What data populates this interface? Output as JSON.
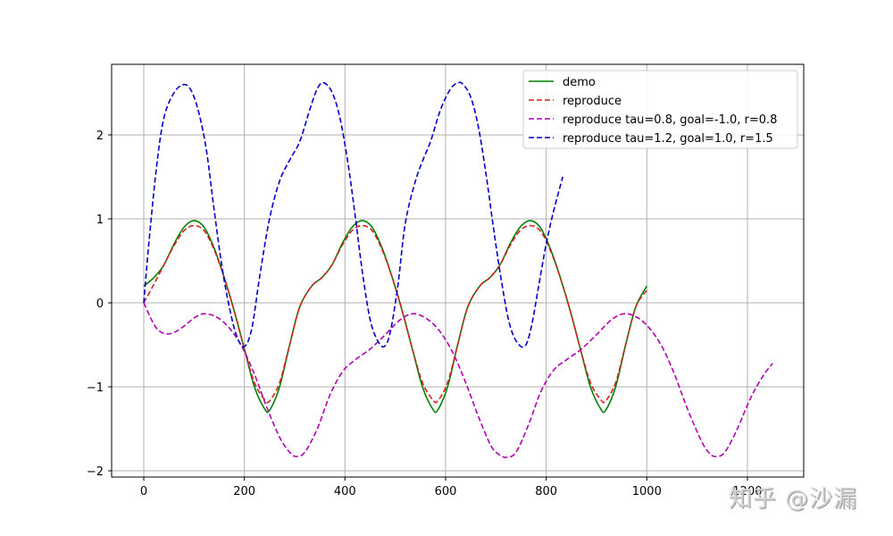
{
  "chart_data": {
    "type": "line",
    "title": "",
    "xlabel": "",
    "ylabel": "",
    "xlim": [
      -64,
      1312
    ],
    "ylim": [
      -2.06,
      2.85
    ],
    "grid": true,
    "legend_position": "upper right",
    "xticks": [
      0,
      200,
      400,
      600,
      800,
      1000,
      1200
    ],
    "xtick_labels": [
      "0",
      "200",
      "400",
      "600",
      "800",
      "1000",
      "1200"
    ],
    "yticks": [
      -2,
      -1,
      0,
      1,
      2
    ],
    "ytick_labels": [
      "−2",
      "−1",
      "0",
      "1",
      "2"
    ],
    "series": [
      {
        "name": "demo",
        "color": "#008000",
        "style": "solid",
        "x": [
          0,
          20,
          40,
          60,
          80,
          100,
          120,
          140,
          160,
          180,
          200,
          220,
          240,
          250,
          270,
          290,
          310,
          334,
          354,
          374,
          394,
          414,
          434,
          454,
          474,
          494,
          514,
          534,
          554,
          574,
          584,
          604,
          624,
          644,
          668,
          688,
          708,
          728,
          748,
          768,
          788,
          808,
          828,
          848,
          868,
          888,
          908,
          918,
          938,
          958,
          978,
          1000
        ],
        "y": [
          0.2,
          0.3,
          0.45,
          0.7,
          0.9,
          0.98,
          0.9,
          0.65,
          0.3,
          -0.1,
          -0.55,
          -1.0,
          -1.26,
          -1.28,
          -1.0,
          -0.5,
          -0.05,
          0.2,
          0.3,
          0.45,
          0.7,
          0.9,
          0.98,
          0.9,
          0.65,
          0.3,
          -0.1,
          -0.55,
          -1.0,
          -1.26,
          -1.28,
          -1.0,
          -0.5,
          -0.05,
          0.2,
          0.3,
          0.45,
          0.7,
          0.9,
          0.98,
          0.9,
          0.65,
          0.3,
          -0.1,
          -0.55,
          -1.0,
          -1.26,
          -1.28,
          -1.0,
          -0.5,
          -0.05,
          0.2
        ]
      },
      {
        "name": "reproduce",
        "color": "#d62020",
        "style": "dashed",
        "x": [
          0,
          20,
          40,
          60,
          80,
          100,
          120,
          140,
          160,
          180,
          200,
          220,
          240,
          250,
          270,
          290,
          310,
          334,
          354,
          374,
          394,
          414,
          434,
          454,
          474,
          494,
          514,
          534,
          554,
          574,
          584,
          604,
          624,
          644,
          668,
          688,
          708,
          728,
          748,
          768,
          788,
          808,
          828,
          848,
          868,
          888,
          908,
          918,
          938,
          958,
          978,
          1000
        ],
        "y": [
          0.0,
          0.22,
          0.45,
          0.68,
          0.86,
          0.92,
          0.86,
          0.63,
          0.3,
          -0.1,
          -0.55,
          -0.95,
          -1.15,
          -1.17,
          -0.95,
          -0.5,
          -0.05,
          0.2,
          0.3,
          0.45,
          0.68,
          0.86,
          0.92,
          0.86,
          0.63,
          0.3,
          -0.1,
          -0.55,
          -0.95,
          -1.15,
          -1.17,
          -0.95,
          -0.5,
          -0.05,
          0.2,
          0.3,
          0.45,
          0.68,
          0.86,
          0.92,
          0.86,
          0.63,
          0.3,
          -0.1,
          -0.55,
          -0.95,
          -1.15,
          -1.17,
          -0.95,
          -0.5,
          -0.05,
          0.15
        ]
      },
      {
        "name": "reproduce tau=0.8, goal=-1.0, r=0.8",
        "color": "#b000b0",
        "style": "dashed",
        "x": [
          0,
          25,
          50,
          75,
          100,
          120,
          145,
          170,
          195,
          220,
          245,
          270,
          290,
          303,
          320,
          345,
          370,
          395,
          420,
          450,
          480,
          510,
          537,
          565,
          590,
          615,
          640,
          665,
          690,
          705,
          720,
          740,
          765,
          790,
          815,
          840,
          870,
          900,
          930,
          955,
          980,
          1005,
          1030,
          1055,
          1080,
          1105,
          1120,
          1135,
          1155,
          1180,
          1205,
          1230,
          1250
        ],
        "y": [
          0.0,
          -0.3,
          -0.37,
          -0.3,
          -0.18,
          -0.13,
          -0.17,
          -0.3,
          -0.52,
          -0.85,
          -1.25,
          -1.6,
          -1.78,
          -1.83,
          -1.78,
          -1.5,
          -1.1,
          -0.82,
          -0.68,
          -0.55,
          -0.38,
          -0.2,
          -0.13,
          -0.2,
          -0.35,
          -0.6,
          -0.95,
          -1.35,
          -1.7,
          -1.8,
          -1.84,
          -1.78,
          -1.45,
          -1.05,
          -0.8,
          -0.68,
          -0.55,
          -0.38,
          -0.2,
          -0.13,
          -0.17,
          -0.3,
          -0.52,
          -0.85,
          -1.25,
          -1.6,
          -1.76,
          -1.83,
          -1.78,
          -1.5,
          -1.15,
          -0.88,
          -0.72
        ]
      },
      {
        "name": "reproduce tau=1.2, goal=1.0, r=1.5",
        "color": "#0000c8",
        "style": "dashed",
        "x": [
          0,
          10,
          25,
          40,
          60,
          80,
          95,
          110,
          125,
          140,
          155,
          170,
          185,
          200,
          215,
          230,
          250,
          270,
          290,
          310,
          330,
          345,
          358,
          375,
          390,
          405,
          420,
          435,
          450,
          465,
          478,
          490,
          505,
          520,
          540,
          555,
          570,
          590,
          610,
          625,
          635,
          650,
          665,
          680,
          695,
          710,
          725,
          740,
          757,
          770,
          785,
          800,
          815,
          833
        ],
        "y": [
          0.0,
          0.7,
          1.6,
          2.2,
          2.5,
          2.6,
          2.52,
          2.25,
          1.8,
          1.1,
          0.45,
          -0.05,
          -0.4,
          -0.52,
          -0.3,
          0.3,
          1.0,
          1.45,
          1.7,
          1.92,
          2.3,
          2.55,
          2.62,
          2.5,
          2.2,
          1.7,
          1.05,
          0.35,
          -0.2,
          -0.45,
          -0.52,
          -0.35,
          0.2,
          0.95,
          1.45,
          1.7,
          1.92,
          2.3,
          2.55,
          2.62,
          2.6,
          2.45,
          2.1,
          1.55,
          0.9,
          0.3,
          -0.2,
          -0.45,
          -0.52,
          -0.3,
          0.2,
          0.7,
          1.1,
          1.5
        ]
      }
    ]
  },
  "legend": {
    "items": [
      {
        "label": "demo",
        "color": "#008000",
        "style": "solid"
      },
      {
        "label": "reproduce",
        "color": "#d62020",
        "style": "dashed"
      },
      {
        "label": "reproduce tau=0.8, goal=-1.0, r=0.8",
        "color": "#b000b0",
        "style": "dashed"
      },
      {
        "label": "reproduce tau=1.2, goal=1.0, r=1.5",
        "color": "#0000c8",
        "style": "dashed"
      }
    ]
  },
  "watermark": {
    "text": "知乎 @沙漏"
  }
}
